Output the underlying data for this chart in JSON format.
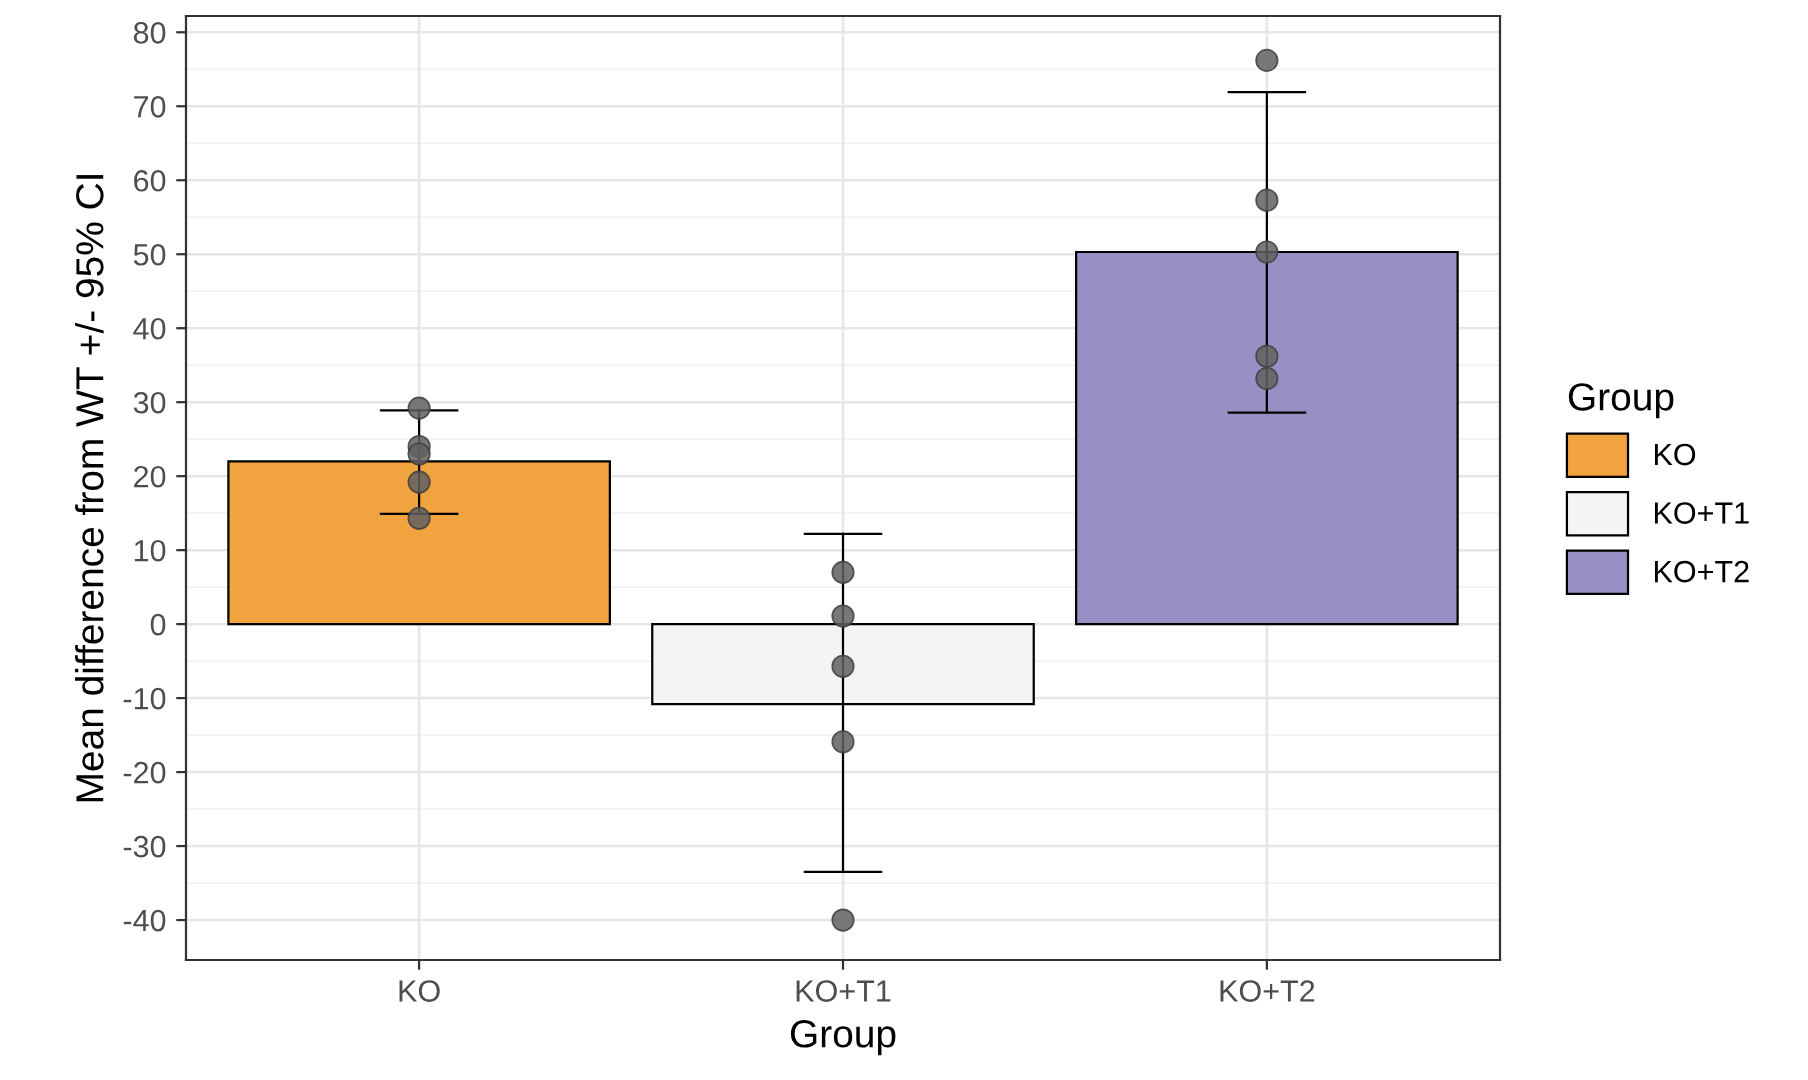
{
  "chart_data": {
    "type": "bar",
    "xlabel": "Group",
    "ylabel": "Mean difference from WT +/- 95% CI",
    "legend_title": "Group",
    "categories": [
      "KO",
      "KO+T1",
      "KO+T2"
    ],
    "series": [
      {
        "name": "KO",
        "color": "#f0a33f",
        "values": [
          22,
          null,
          null
        ],
        "errors": [
          [
            14.9,
            28.9
          ],
          null,
          null
        ]
      },
      {
        "name": "KO+T1",
        "color": "#f4f4f4",
        "values": [
          null,
          -10.8,
          null
        ],
        "errors": [
          null,
          [
            -33.5,
            12.2
          ],
          null
        ]
      },
      {
        "name": "KO+T2",
        "color": "#9a8fc4",
        "values": [
          null,
          null,
          50.3
        ],
        "errors": [
          null,
          null,
          [
            28.6,
            71.9
          ]
        ]
      },
      {
        "type": "scatter",
        "color": "#606060",
        "x": [
          "KO",
          "KO",
          "KO",
          "KO",
          "KO",
          "KO+T1",
          "KO+T1",
          "KO+T1",
          "KO+T1",
          "KO+T1",
          "KO+T2",
          "KO+T2",
          "KO+T2",
          "KO+T2",
          "KO+T2"
        ],
        "values": [
          29.2,
          24,
          23,
          19.2,
          14.3,
          7,
          1.1,
          -5.7,
          -15.9,
          -40,
          76.2,
          57.3,
          50.3,
          36.2,
          33.2
        ]
      }
    ],
    "ylim": [
      -45.4,
      82.2
    ],
    "yticks": [
      -40,
      -30,
      -20,
      -10,
      0,
      10,
      20,
      30,
      40,
      50,
      60,
      70,
      80
    ],
    "grid": true,
    "legend": "right",
    "marker": "circle"
  }
}
